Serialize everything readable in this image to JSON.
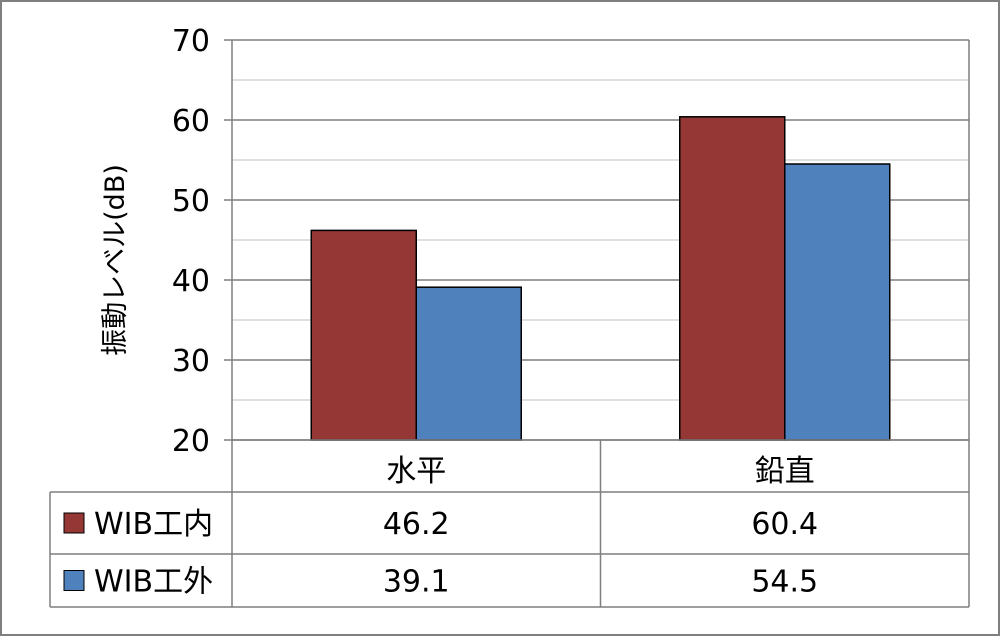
{
  "chart_data": {
    "type": "bar",
    "categories": [
      "水平",
      "鉛直"
    ],
    "series": [
      {
        "name": "WIB工内",
        "values": [
          46.2,
          60.4
        ],
        "color": "#953735"
      },
      {
        "name": "WIB工外",
        "values": [
          39.1,
          54.5
        ],
        "color": "#4f81bd"
      }
    ],
    "title": "",
    "xlabel": "",
    "ylabel": "振動レベル(dB)",
    "ylim": [
      20,
      70
    ],
    "yticks": [
      20,
      30,
      40,
      50,
      60,
      70
    ],
    "grid": true,
    "legend": "data-table-left"
  }
}
